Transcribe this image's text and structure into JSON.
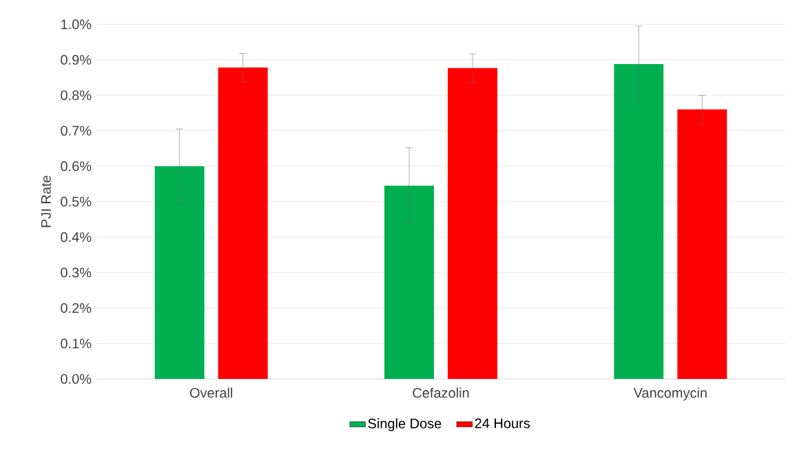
{
  "chart_data": {
    "type": "bar",
    "ylabel": "PJI Rate",
    "categories": [
      "Overall",
      "Cefazolin",
      "Vancomycin"
    ],
    "series": [
      {
        "name": "Single Dose",
        "color": "#00b050",
        "values": [
          0.6,
          0.545,
          0.888
        ],
        "errors": [
          0.105,
          0.107,
          0.107
        ]
      },
      {
        "name": "24 Hours",
        "color": "#ff0000",
        "values": [
          0.878,
          0.877,
          0.76
        ],
        "errors": [
          0.04,
          0.04,
          0.04
        ]
      }
    ],
    "ylim": [
      0,
      1.0
    ],
    "yticks": [
      {
        "value": 0,
        "label": "0.0%"
      },
      {
        "value": 0.1,
        "label": "0.1%"
      },
      {
        "value": 0.2,
        "label": "0.2%"
      },
      {
        "value": 0.3,
        "label": "0.3%"
      },
      {
        "value": 0.4,
        "label": "0.4%"
      },
      {
        "value": 0.5,
        "label": "0.5%"
      },
      {
        "value": 0.6,
        "label": "0.6%"
      },
      {
        "value": 0.7,
        "label": "0.7%"
      },
      {
        "value": 0.8,
        "label": "0.8%"
      },
      {
        "value": 0.9,
        "label": "0.9%"
      },
      {
        "value": 1.0,
        "label": "1.0%"
      }
    ],
    "grid": "y",
    "legend": "bottom"
  }
}
